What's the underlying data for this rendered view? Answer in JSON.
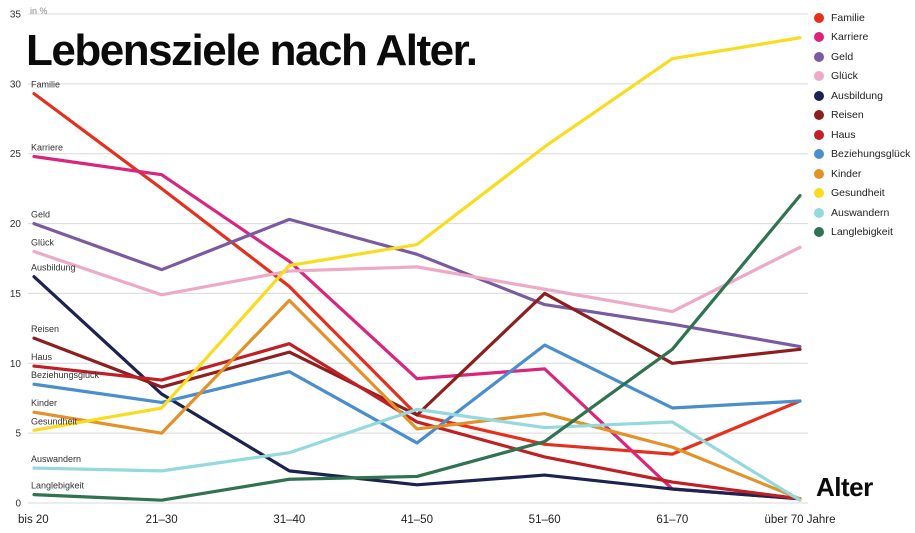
{
  "title": "Lebensziele nach Alter.",
  "unit_label": "in %",
  "xaxis_title": "Alter",
  "chart_data": {
    "type": "line",
    "title": "Lebensziele nach Alter.",
    "ylabel": "in %",
    "xlabel": "Alter",
    "ylim": [
      0,
      35
    ],
    "ytick_step": 5,
    "grid": true,
    "legend_position": "top-right",
    "categories": [
      "bis 20",
      "21–30",
      "31–40",
      "41–50",
      "51–60",
      "61–70",
      "über 70 Jahre"
    ],
    "series": [
      {
        "name": "Familie",
        "color": "#e5301d",
        "values": [
          29.3,
          22.5,
          15.5,
          6.3,
          4.2,
          3.5,
          7.3
        ]
      },
      {
        "name": "Karriere",
        "color": "#d9267c",
        "values": [
          24.8,
          23.5,
          17.3,
          8.9,
          9.6,
          1.0,
          0.3
        ]
      },
      {
        "name": "Geld",
        "color": "#7b5ba0",
        "values": [
          20.0,
          16.7,
          20.3,
          17.8,
          14.2,
          12.8,
          11.2
        ]
      },
      {
        "name": "Glück",
        "color": "#ecaac6",
        "values": [
          18.0,
          14.9,
          16.6,
          16.9,
          15.3,
          13.7,
          18.3
        ]
      },
      {
        "name": "Ausbildung",
        "color": "#1c2350",
        "values": [
          16.2,
          7.8,
          2.3,
          1.3,
          2.0,
          1.0,
          0.3
        ]
      },
      {
        "name": "Reisen",
        "color": "#8e1f1f",
        "values": [
          11.8,
          8.3,
          10.8,
          6.3,
          15.0,
          10.0,
          11.0
        ]
      },
      {
        "name": "Haus",
        "color": "#c01f25",
        "values": [
          9.8,
          8.8,
          11.4,
          5.8,
          3.3,
          1.5,
          0.3
        ]
      },
      {
        "name": "Beziehungsglück",
        "color": "#4a8ecc",
        "values": [
          8.5,
          7.2,
          9.4,
          4.3,
          11.3,
          6.8,
          7.3
        ]
      },
      {
        "name": "Kinder",
        "color": "#e3922a",
        "values": [
          6.5,
          5.0,
          14.5,
          5.3,
          6.4,
          4.0,
          0.3
        ]
      },
      {
        "name": "Gesundheit",
        "color": "#f8dc20",
        "values": [
          5.2,
          6.8,
          17.0,
          18.5,
          25.5,
          31.8,
          33.3
        ]
      },
      {
        "name": "Auswandern",
        "color": "#93d9dd",
        "values": [
          2.5,
          2.3,
          3.6,
          6.7,
          5.4,
          5.8,
          0.2
        ]
      },
      {
        "name": "Langlebigkeit",
        "color": "#2f7350",
        "values": [
          0.6,
          0.2,
          1.7,
          1.9,
          4.4,
          11.0,
          22.0
        ]
      }
    ]
  }
}
